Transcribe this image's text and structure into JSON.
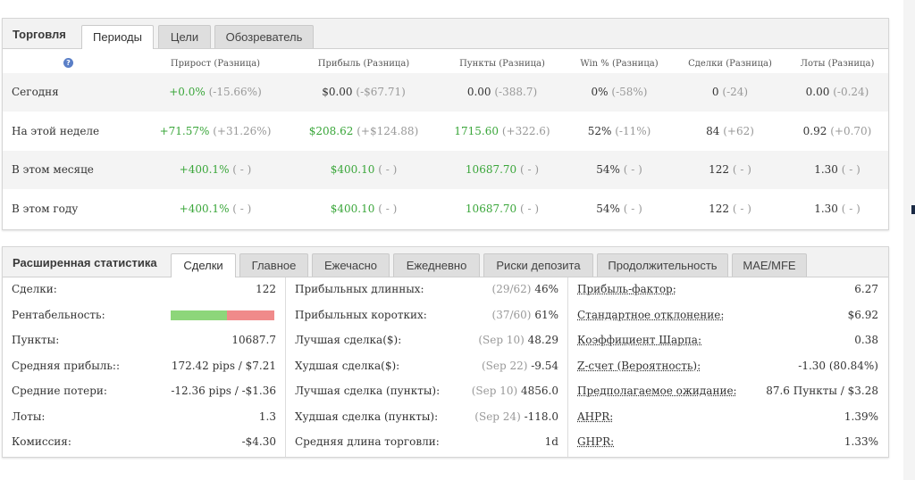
{
  "periods_panel": {
    "title": "Торговля",
    "tabs": [
      {
        "label": "Периоды",
        "active": true
      },
      {
        "label": "Цели",
        "active": false
      },
      {
        "label": "Обозреватель",
        "active": false
      }
    ],
    "headers": [
      "Прирост (Разница)",
      "Прибыль (Разница)",
      "Пункты (Разница)",
      "Win % (Разница)",
      "Сделки (Разница)",
      "Лоты (Разница)"
    ],
    "rows": [
      {
        "label": "Сегодня",
        "cells": [
          {
            "v": "+0.0%",
            "d": "(-15.66%)",
            "green": true
          },
          {
            "v": "$0.00",
            "d": "(-$67.71)",
            "green": false
          },
          {
            "v": "0.00",
            "d": "(-388.7)",
            "green": false
          },
          {
            "v": "0%",
            "d": "(-58%)",
            "green": false
          },
          {
            "v": "0",
            "d": "(-24)",
            "green": false
          },
          {
            "v": "0.00",
            "d": "(-0.24)",
            "green": false
          }
        ]
      },
      {
        "label": "На этой неделе",
        "cells": [
          {
            "v": "+71.57%",
            "d": "(+31.26%)",
            "green": true
          },
          {
            "v": "$208.62",
            "d": "(+$124.88)",
            "green": true
          },
          {
            "v": "1715.60",
            "d": "(+322.6)",
            "green": true
          },
          {
            "v": "52%",
            "d": "(-11%)",
            "green": false
          },
          {
            "v": "84",
            "d": "(+62)",
            "green": false
          },
          {
            "v": "0.92",
            "d": "(+0.70)",
            "green": false
          }
        ]
      },
      {
        "label": "В этом месяце",
        "cells": [
          {
            "v": "+400.1%",
            "d": "( - )",
            "green": true
          },
          {
            "v": "$400.10",
            "d": "( - )",
            "green": true
          },
          {
            "v": "10687.70",
            "d": "( - )",
            "green": true
          },
          {
            "v": "54%",
            "d": "( - )",
            "green": false
          },
          {
            "v": "122",
            "d": "( - )",
            "green": false
          },
          {
            "v": "1.30",
            "d": "( - )",
            "green": false
          }
        ]
      },
      {
        "label": "В этом году",
        "cells": [
          {
            "v": "+400.1%",
            "d": "( - )",
            "green": true
          },
          {
            "v": "$400.10",
            "d": "( - )",
            "green": true
          },
          {
            "v": "10687.70",
            "d": "( - )",
            "green": true
          },
          {
            "v": "54%",
            "d": "( - )",
            "green": false
          },
          {
            "v": "122",
            "d": "( - )",
            "green": false
          },
          {
            "v": "1.30",
            "d": "( - )",
            "green": false
          }
        ]
      }
    ]
  },
  "stats_panel": {
    "title": "Расширенная статистика",
    "tabs": [
      {
        "label": "Сделки",
        "active": true
      },
      {
        "label": "Главное",
        "active": false
      },
      {
        "label": "Ежечасно",
        "active": false
      },
      {
        "label": "Ежедневно",
        "active": false
      },
      {
        "label": "Риски депозита",
        "active": false
      },
      {
        "label": "Продолжительность",
        "active": false
      },
      {
        "label": "MAE/MFE",
        "active": false
      }
    ],
    "col1": [
      {
        "label": "Сделки:",
        "value": "122"
      },
      {
        "label": "Рентабельность:",
        "value": "",
        "bar": {
          "win_fraction": 0.54
        }
      },
      {
        "label": "Пункты:",
        "value": "10687.7"
      },
      {
        "label": "Средняя прибыль::",
        "value": "172.42 pips / $7.21"
      },
      {
        "label": "Средние потери:",
        "value": "-12.36 pips / -$1.36"
      },
      {
        "label": "Лоты:",
        "value": "1.3"
      },
      {
        "label": "Комиссия:",
        "value": "-$4.30"
      }
    ],
    "col2": [
      {
        "label": "Прибыльных длинных:",
        "note": "(29/62)",
        "value": "46%"
      },
      {
        "label": "Прибыльных коротких:",
        "note": "(37/60)",
        "value": "61%"
      },
      {
        "label": "Лучшая сделка($):",
        "note": "(Sep 10)",
        "value": "48.29"
      },
      {
        "label": "Худшая сделка($):",
        "note": "(Sep 22)",
        "value": "-9.54"
      },
      {
        "label": "Лучшая сделка (пункты):",
        "note": "(Sep 10)",
        "value": "4856.0"
      },
      {
        "label": "Худшая сделка (пункты):",
        "note": "(Sep 24)",
        "value": "-118.0"
      },
      {
        "label": "Средняя длина торговли:",
        "note": "",
        "value": "1d"
      }
    ],
    "col3": [
      {
        "label": "Прибыль-фактор:",
        "value": "6.27"
      },
      {
        "label": "Стандартное отклонение:",
        "value": "$6.92"
      },
      {
        "label": "Коэффициент Шарпа:",
        "value": "0.38"
      },
      {
        "label": "Z-счет (Вероятность):",
        "value": "-1.30 (80.84%)"
      },
      {
        "label": "Предполагаемое ожидание:",
        "value": "87.6 Пункты / $3.28"
      },
      {
        "label": "AHPR:",
        "value": "1.39%"
      },
      {
        "label": "GHPR:",
        "value": "1.33%"
      }
    ]
  },
  "colors": {
    "green": "#3aa63a",
    "red": "#f08a8a",
    "bar_green": "#8dd67a",
    "muted": "#999999"
  }
}
